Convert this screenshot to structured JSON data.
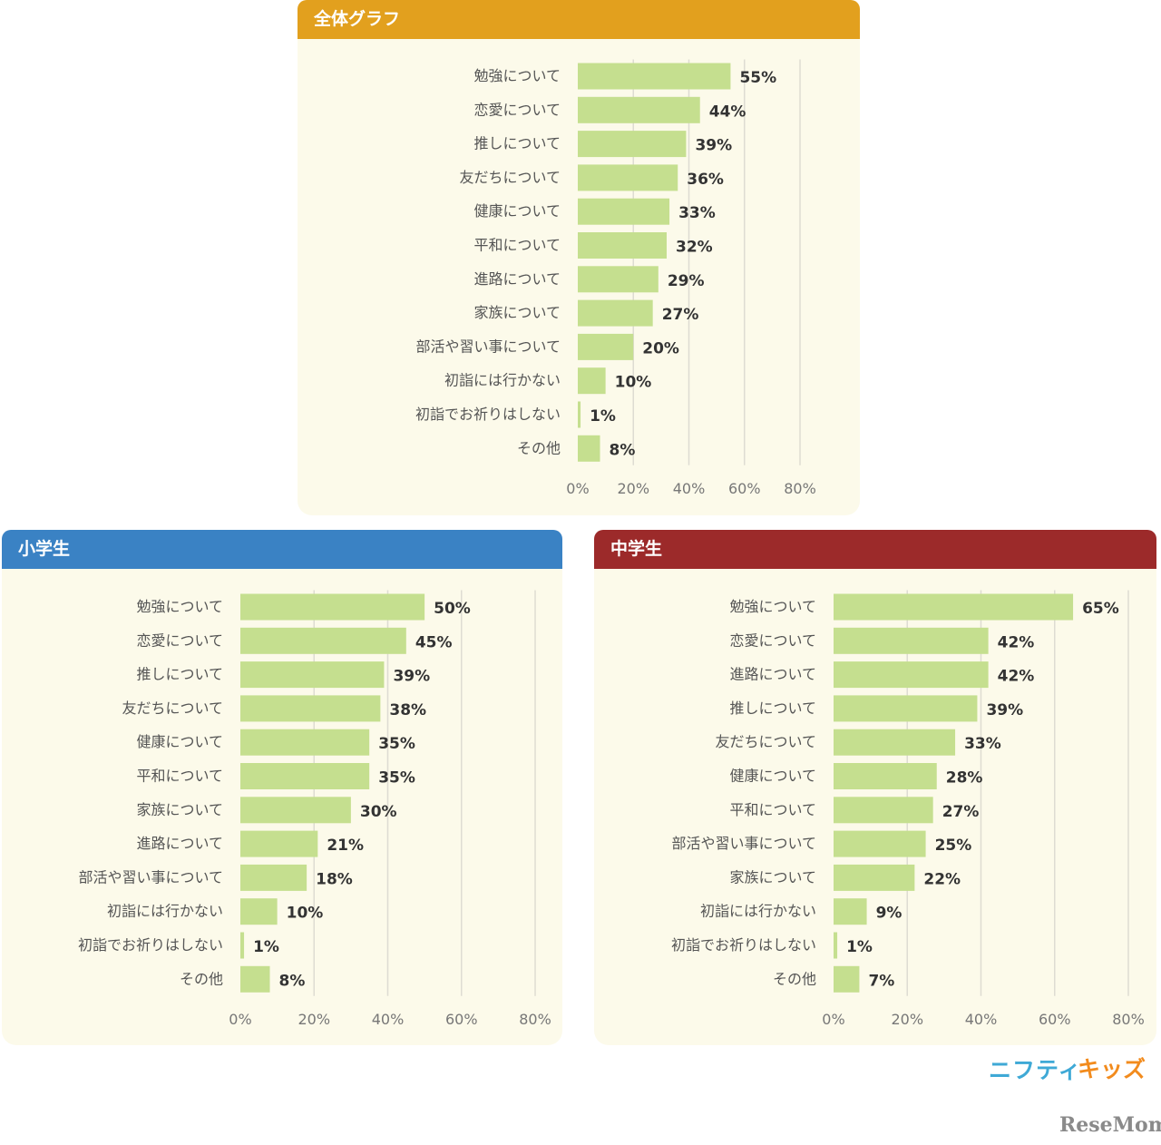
{
  "charts": [
    {
      "id": "overall",
      "title": "全体グラフ",
      "color": "#e2a01e",
      "chart_data": {
        "type": "bar",
        "orientation": "horizontal",
        "categories": [
          "勉強について",
          "恋愛について",
          "推しについて",
          "友だちについて",
          "健康について",
          "平和について",
          "進路について",
          "家族について",
          "部活や習い事について",
          "初詣には行かない",
          "初詣でお祈りはしない",
          "その他"
        ],
        "values": [
          55,
          44,
          39,
          36,
          33,
          32,
          29,
          27,
          20,
          10,
          1,
          8
        ],
        "value_labels": [
          "55%",
          "44%",
          "39%",
          "36%",
          "33%",
          "32%",
          "29%",
          "27%",
          "20%",
          "10%",
          "1%",
          "8%"
        ],
        "xlim": [
          0,
          80
        ],
        "ticks": [
          "0%",
          "20%",
          "40%",
          "60%",
          "80%"
        ],
        "grid": true,
        "bar_color": "#c5df8f"
      }
    },
    {
      "id": "elementary",
      "title": "小学生",
      "color": "#3a82c4",
      "chart_data": {
        "type": "bar",
        "orientation": "horizontal",
        "categories": [
          "勉強について",
          "恋愛について",
          "推しについて",
          "友だちについて",
          "健康について",
          "平和について",
          "家族について",
          "進路について",
          "部活や習い事について",
          "初詣には行かない",
          "初詣でお祈りはしない",
          "その他"
        ],
        "values": [
          50,
          45,
          39,
          38,
          35,
          35,
          30,
          21,
          18,
          10,
          1,
          8
        ],
        "value_labels": [
          "50%",
          "45%",
          "39%",
          "38%",
          "35%",
          "35%",
          "30%",
          "21%",
          "18%",
          "10%",
          "1%",
          "8%"
        ],
        "xlim": [
          0,
          80
        ],
        "ticks": [
          "0%",
          "20%",
          "40%",
          "60%",
          "80%"
        ],
        "grid": true,
        "bar_color": "#c5df8f"
      }
    },
    {
      "id": "junior-high",
      "title": "中学生",
      "color": "#9c2a2a",
      "chart_data": {
        "type": "bar",
        "orientation": "horizontal",
        "categories": [
          "勉強について",
          "恋愛について",
          "進路について",
          "推しについて",
          "友だちについて",
          "健康について",
          "平和について",
          "部活や習い事について",
          "家族について",
          "初詣には行かない",
          "初詣でお祈りはしない",
          "その他"
        ],
        "values": [
          65,
          42,
          42,
          39,
          33,
          28,
          27,
          25,
          22,
          9,
          1,
          7
        ],
        "value_labels": [
          "65%",
          "42%",
          "42%",
          "39%",
          "33%",
          "28%",
          "27%",
          "25%",
          "22%",
          "9%",
          "1%",
          "7%"
        ],
        "xlim": [
          0,
          80
        ],
        "ticks": [
          "0%",
          "20%",
          "40%",
          "60%",
          "80%"
        ],
        "grid": true,
        "bar_color": "#c5df8f"
      }
    }
  ],
  "logos": {
    "nifty": "ニフティ",
    "kids": "キッズ",
    "resemom": "ReseMom"
  }
}
